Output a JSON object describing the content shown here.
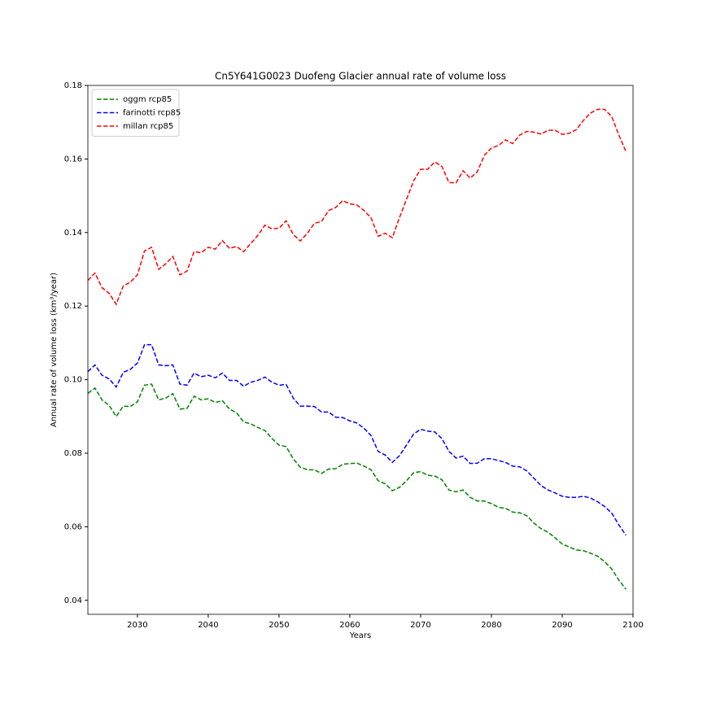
{
  "chart_data": {
    "type": "line",
    "title": "Cn5Y641G0023 Duofeng Glacier annual rate of volume loss",
    "x_label": "Years",
    "y_label": "Annual rate of volume loss (km³/year)",
    "x": [
      2023,
      2024,
      2025,
      2026,
      2027,
      2028,
      2029,
      2030,
      2031,
      2032,
      2033,
      2034,
      2035,
      2036,
      2037,
      2038,
      2039,
      2040,
      2041,
      2042,
      2043,
      2044,
      2045,
      2046,
      2047,
      2048,
      2049,
      2050,
      2051,
      2052,
      2053,
      2054,
      2055,
      2056,
      2057,
      2058,
      2059,
      2060,
      2061,
      2062,
      2063,
      2064,
      2065,
      2066,
      2067,
      2068,
      2069,
      2070,
      2071,
      2072,
      2073,
      2074,
      2075,
      2076,
      2077,
      2078,
      2079,
      2080,
      2081,
      2082,
      2083,
      2084,
      2085,
      2086,
      2087,
      2088,
      2089,
      2090,
      2091,
      2092,
      2093,
      2094,
      2095,
      2096,
      2097,
      2098,
      2099
    ],
    "series": [
      {
        "name": "oggm rcp85",
        "color": "#008000",
        "values": [
          0.0963,
          0.0977,
          0.0945,
          0.093,
          0.09,
          0.0928,
          0.0927,
          0.094,
          0.0985,
          0.0988,
          0.0945,
          0.095,
          0.0962,
          0.092,
          0.0922,
          0.0955,
          0.0945,
          0.0948,
          0.0938,
          0.0943,
          0.092,
          0.091,
          0.0885,
          0.088,
          0.087,
          0.0862,
          0.084,
          0.0822,
          0.0818,
          0.0785,
          0.0762,
          0.0755,
          0.0755,
          0.0745,
          0.0757,
          0.0758,
          0.077,
          0.0772,
          0.0773,
          0.0765,
          0.0755,
          0.0725,
          0.0717,
          0.0698,
          0.0707,
          0.0725,
          0.0747,
          0.075,
          0.074,
          0.0738,
          0.0728,
          0.07,
          0.0695,
          0.07,
          0.068,
          0.067,
          0.067,
          0.0663,
          0.0653,
          0.065,
          0.064,
          0.0638,
          0.063,
          0.061,
          0.0595,
          0.0585,
          0.057,
          0.0553,
          0.0545,
          0.0537,
          0.0535,
          0.0528,
          0.052,
          0.0505,
          0.0485,
          0.0455,
          0.043
        ]
      },
      {
        "name": "farinotti rcp85",
        "color": "#0000ff",
        "values": [
          0.1022,
          0.104,
          0.1012,
          0.1002,
          0.098,
          0.102,
          0.1028,
          0.1045,
          0.1095,
          0.1095,
          0.104,
          0.1038,
          0.104,
          0.0988,
          0.0985,
          0.1018,
          0.1008,
          0.1012,
          0.1005,
          0.1018,
          0.0998,
          0.0998,
          0.0982,
          0.0993,
          0.0998,
          0.1007,
          0.0993,
          0.0985,
          0.0987,
          0.095,
          0.0928,
          0.0928,
          0.0927,
          0.0912,
          0.0912,
          0.0898,
          0.0897,
          0.0888,
          0.0882,
          0.0868,
          0.0848,
          0.0805,
          0.0795,
          0.0775,
          0.0793,
          0.0822,
          0.0852,
          0.0865,
          0.086,
          0.0858,
          0.084,
          0.0805,
          0.0787,
          0.0792,
          0.0772,
          0.0773,
          0.0785,
          0.0785,
          0.078,
          0.0775,
          0.0765,
          0.0763,
          0.0752,
          0.0732,
          0.0712,
          0.07,
          0.0692,
          0.0683,
          0.068,
          0.068,
          0.0683,
          0.0678,
          0.0668,
          0.0655,
          0.0637,
          0.0605,
          0.0577
        ]
      },
      {
        "name": "millan rcp85",
        "color": "#ff0000",
        "values": [
          0.127,
          0.129,
          0.125,
          0.1235,
          0.1205,
          0.1255,
          0.1265,
          0.1285,
          0.135,
          0.136,
          0.13,
          0.1315,
          0.1335,
          0.1285,
          0.1295,
          0.1348,
          0.1345,
          0.136,
          0.1355,
          0.1378,
          0.1357,
          0.1362,
          0.1348,
          0.137,
          0.1392,
          0.142,
          0.141,
          0.1412,
          0.1432,
          0.1395,
          0.1377,
          0.1398,
          0.1425,
          0.143,
          0.146,
          0.1468,
          0.1487,
          0.1478,
          0.1475,
          0.146,
          0.144,
          0.139,
          0.1398,
          0.1386,
          0.144,
          0.149,
          0.154,
          0.1572,
          0.1572,
          0.1592,
          0.158,
          0.1536,
          0.1535,
          0.1568,
          0.1548,
          0.1565,
          0.161,
          0.163,
          0.1637,
          0.1652,
          0.1642,
          0.1665,
          0.1675,
          0.1673,
          0.1668,
          0.1678,
          0.1678,
          0.1667,
          0.167,
          0.168,
          0.1705,
          0.1725,
          0.1735,
          0.1735,
          0.1715,
          0.1665,
          0.162
        ]
      }
    ],
    "xlim": [
      2023,
      2100
    ],
    "xticks": [
      2030,
      2040,
      2050,
      2060,
      2070,
      2080,
      2090,
      2100
    ],
    "ylim": [
      0.0362,
      0.18
    ],
    "yticks": [
      0.04,
      0.06,
      0.08,
      {
        "value": 0.1,
        "label": "0.10"
      },
      0.12,
      0.14,
      0.16,
      0.18
    ],
    "legend": "upper left",
    "line_style": "dashed"
  }
}
